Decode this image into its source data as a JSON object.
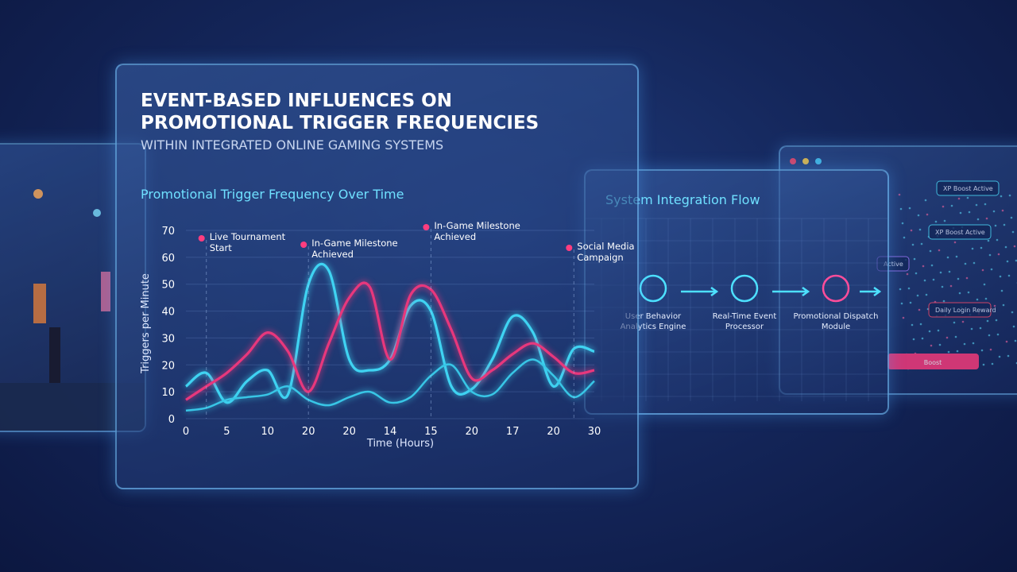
{
  "header": {
    "title_line1": "EVENT-BASED INFLUENCES ON",
    "title_line2": "PROMOTIONAL TRIGGER FREQUENCIES",
    "subtitle": "WITHIN INTEGRATED ONLINE GAMING SYSTEMS"
  },
  "chart_data": {
    "type": "line",
    "title": "Promotional Trigger Frequency Over Time",
    "x_label": "Time (Hours)",
    "y_label": "Triggers per Minute",
    "categories": [
      "0",
      null,
      "5",
      null,
      "10",
      null,
      "20",
      null,
      "20",
      null,
      "14",
      null,
      "15",
      null,
      "20",
      null,
      "17",
      null,
      "20",
      null,
      "30"
    ],
    "series": [
      {
        "color": "#3fd3f2",
        "values": [
          12,
          17,
          6,
          14,
          18,
          9,
          50,
          55,
          22,
          18,
          22,
          42,
          40,
          12,
          11,
          22,
          38,
          32,
          12,
          26,
          25
        ]
      },
      {
        "color": "#e8377c",
        "values": [
          7,
          12,
          17,
          24,
          32,
          25,
          10,
          28,
          45,
          49,
          22,
          46,
          48,
          33,
          15,
          18,
          24,
          28,
          23,
          17,
          18
        ]
      },
      {
        "color": "#38c6e6",
        "values": [
          3,
          4,
          7,
          8,
          9,
          12,
          7,
          5,
          8,
          10,
          6,
          8,
          16,
          20,
          10,
          9,
          17,
          22,
          16,
          8,
          14
        ]
      }
    ],
    "ylim": [
      0,
      70
    ],
    "yticks": [
      0,
      10,
      20,
      30,
      40,
      50,
      60,
      70
    ],
    "grid": true,
    "annotations": [
      "Live Tournament Start",
      "In-Game Milestone Achieved",
      "In-Game Milestone Achieved",
      "Social Media Campaign"
    ]
  },
  "integration": {
    "title": "System Integration Flow",
    "nodes": [
      "User Behavior Analytics Engine",
      "Real-Time Event Processor",
      "Promotional Dispatch Module"
    ]
  },
  "rewards": {
    "badges": [
      "XP Boost Active",
      "XP Boost Active",
      "Active",
      "Daily Login Reward"
    ],
    "button": "Boost"
  }
}
